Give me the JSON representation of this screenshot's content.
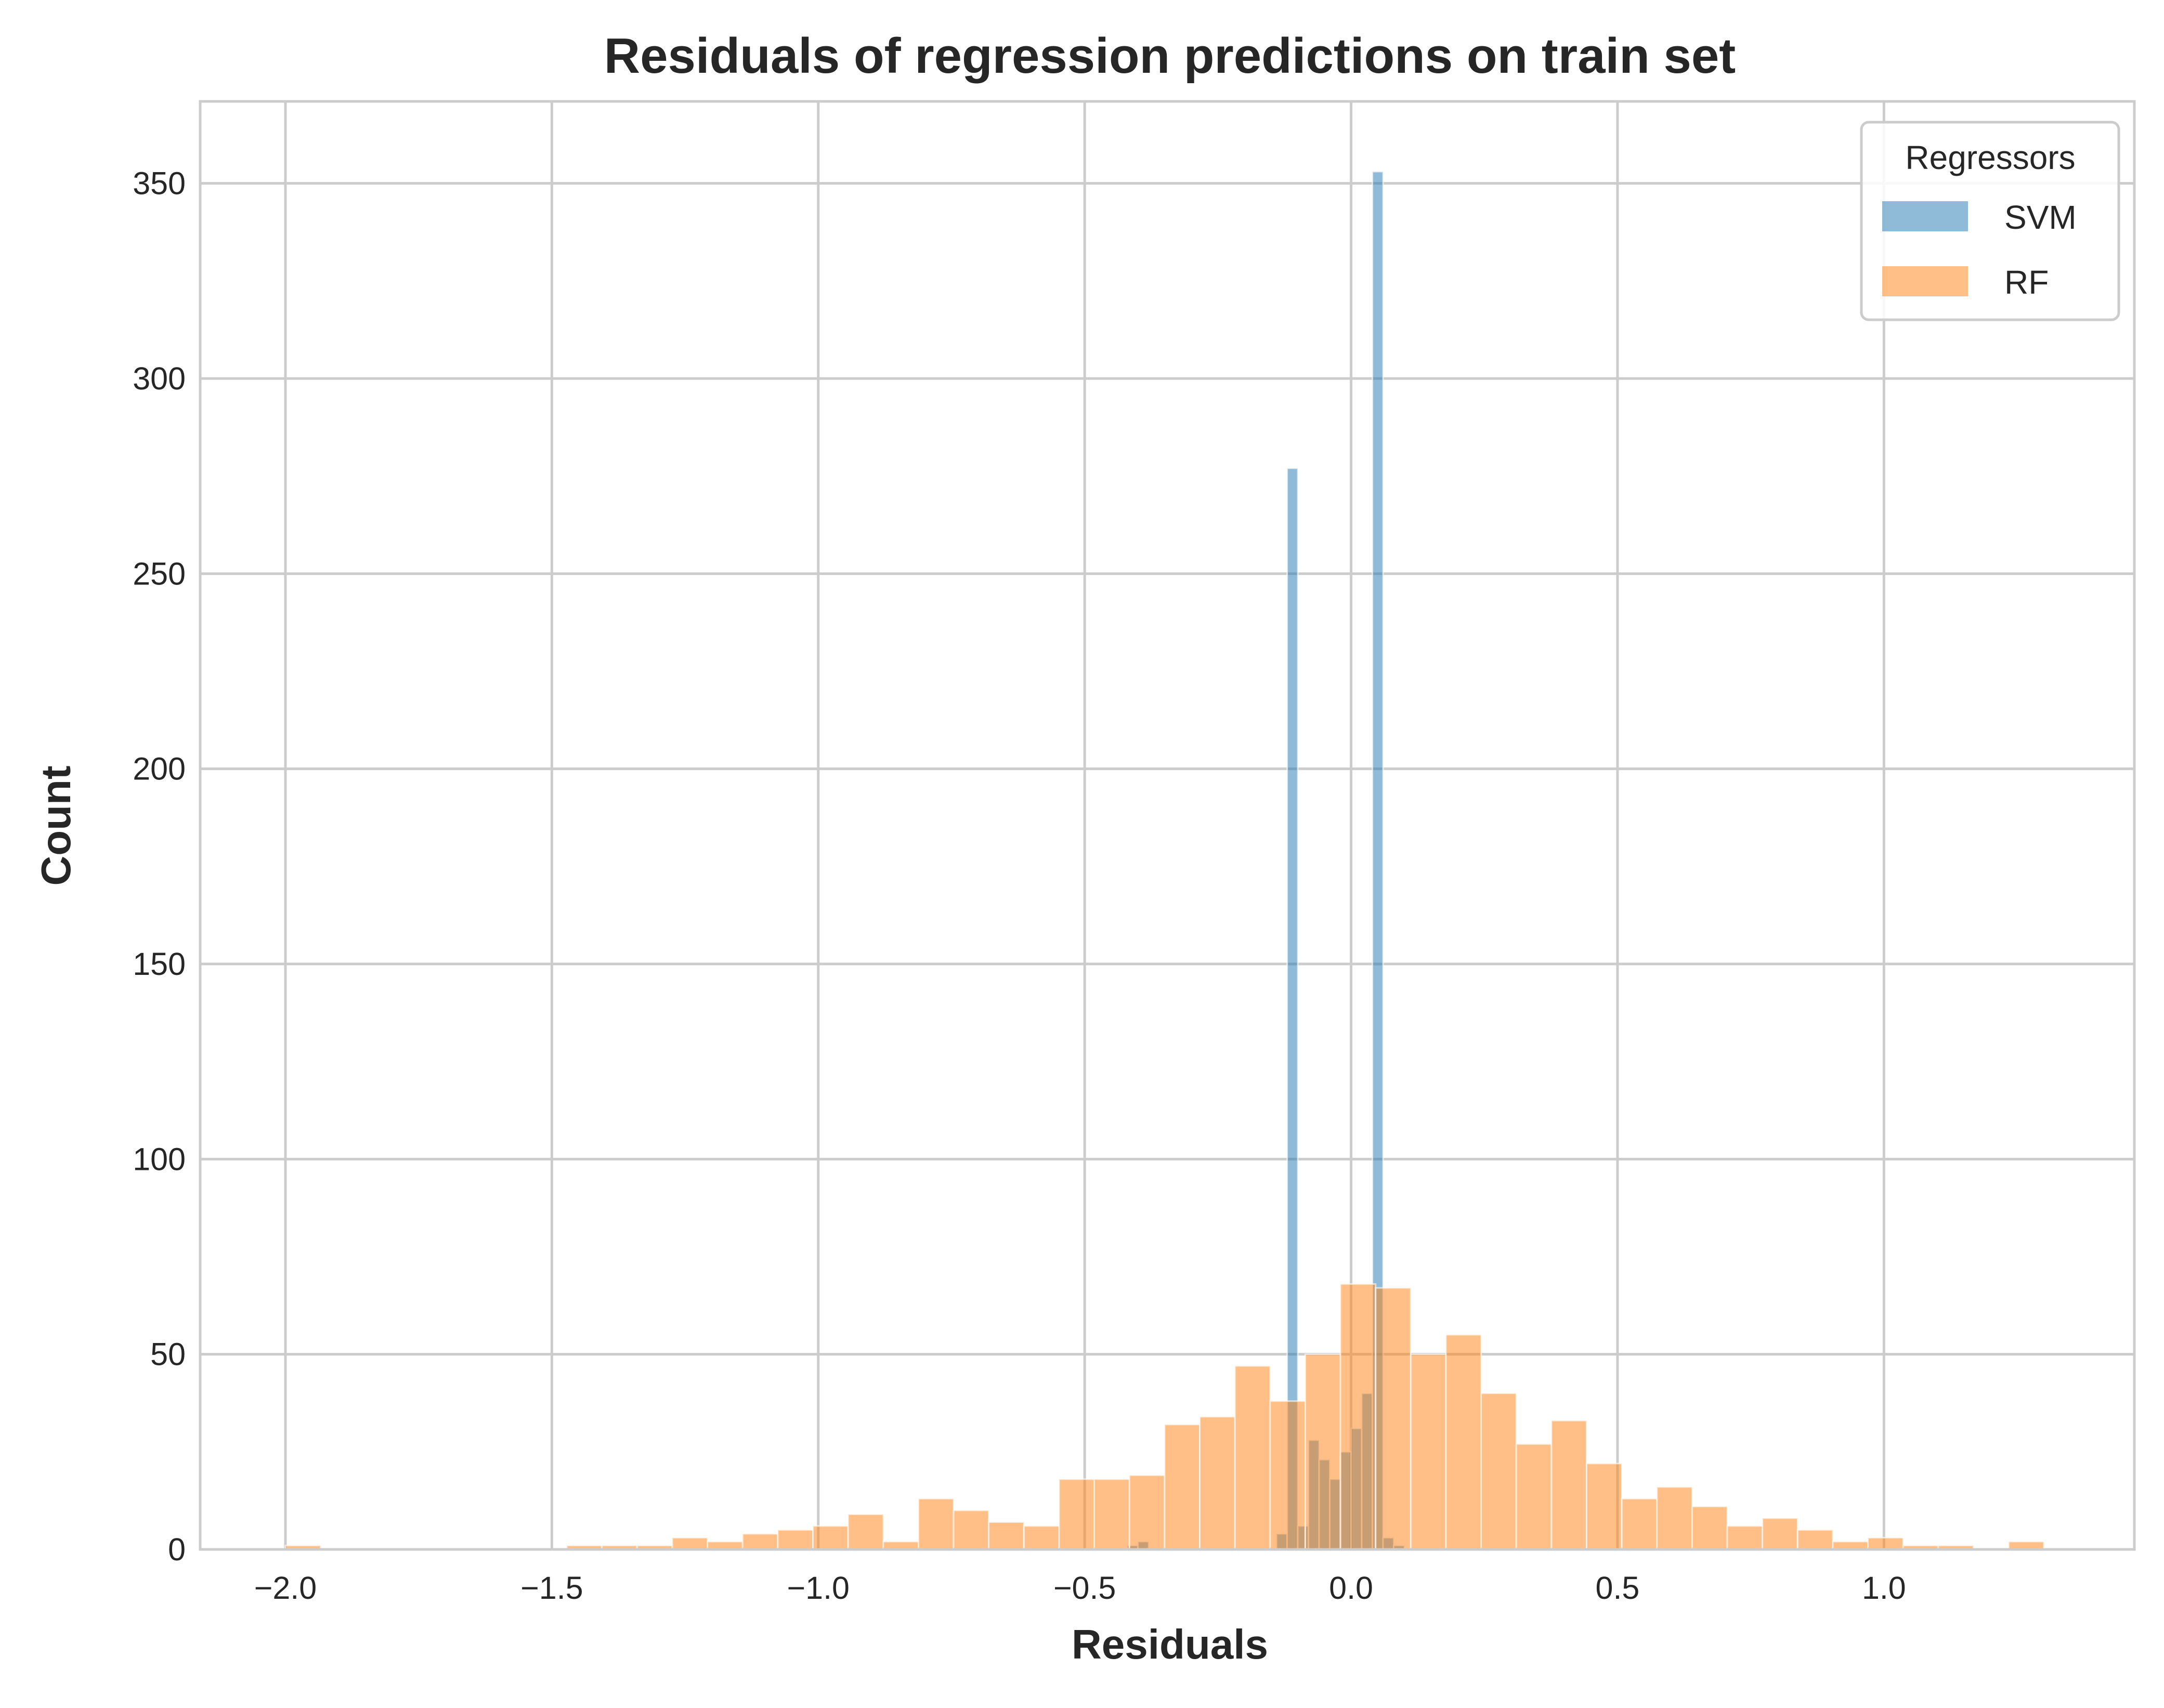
{
  "chart_data": {
    "type": "bar",
    "subtype": "histogram",
    "title": "Residuals of regression predictions on train set",
    "xlabel": "Residuals",
    "ylabel": "Count",
    "xlim": [
      -2.16,
      1.47
    ],
    "ylim": [
      0,
      371
    ],
    "x_ticks": [
      -2.0,
      -1.5,
      -1.0,
      -0.5,
      0.0,
      0.5,
      1.0
    ],
    "x_tick_labels": [
      "−2.0",
      "−1.5",
      "−1.0",
      "−0.5",
      "0.0",
      "0.5",
      "1.0"
    ],
    "y_ticks": [
      0,
      50,
      100,
      150,
      200,
      250,
      300,
      350
    ],
    "y_tick_labels": [
      "0",
      "50",
      "100",
      "150",
      "200",
      "250",
      "300",
      "350"
    ],
    "grid": true,
    "legend": {
      "title": "Regressors",
      "position": "top-right"
    },
    "series": [
      {
        "name": "SVM",
        "color": "#1f77b4",
        "alpha": 0.5,
        "bin_edges": [
          -0.42,
          -0.4,
          -0.38,
          -0.16,
          -0.14,
          -0.12,
          -0.1,
          -0.08,
          -0.06,
          -0.04,
          -0.02,
          0.0,
          0.02,
          0.04,
          0.06,
          0.08,
          0.1,
          0.12,
          0.14,
          0.16
        ],
        "counts": [
          1,
          2,
          0,
          0,
          4,
          277,
          6,
          28,
          23,
          18,
          25,
          31,
          40,
          353,
          3,
          1,
          0,
          0,
          0
        ]
      },
      {
        "name": "RF",
        "color": "#ff7f0e",
        "alpha": 0.5,
        "bin_edges": [
          -2.0,
          -1.934,
          -1.868,
          -1.802,
          -1.736,
          -1.67,
          -1.604,
          -1.538,
          -1.472,
          -1.406,
          -1.34,
          -1.274,
          -1.208,
          -1.142,
          -1.076,
          -1.01,
          -0.944,
          -0.878,
          -0.812,
          -0.746,
          -0.68,
          -0.614,
          -0.548,
          -0.482,
          -0.416,
          -0.35,
          -0.284,
          -0.218,
          -0.152,
          -0.086,
          -0.02,
          0.046,
          0.112,
          0.178,
          0.244,
          0.31,
          0.376,
          0.442,
          0.508,
          0.574,
          0.64,
          0.706,
          0.772,
          0.838,
          0.904,
          0.97,
          1.036,
          1.102,
          1.168,
          1.234,
          1.3
        ],
        "counts": [
          1,
          0,
          0,
          0,
          0,
          0,
          0,
          0,
          1,
          1,
          1,
          3,
          2,
          4,
          5,
          6,
          9,
          2,
          13,
          10,
          7,
          6,
          18,
          18,
          19,
          32,
          34,
          47,
          38,
          50,
          68,
          67,
          50,
          55,
          40,
          27,
          33,
          22,
          13,
          16,
          11,
          6,
          8,
          5,
          2,
          3,
          1,
          1,
          0,
          2
        ]
      }
    ]
  }
}
